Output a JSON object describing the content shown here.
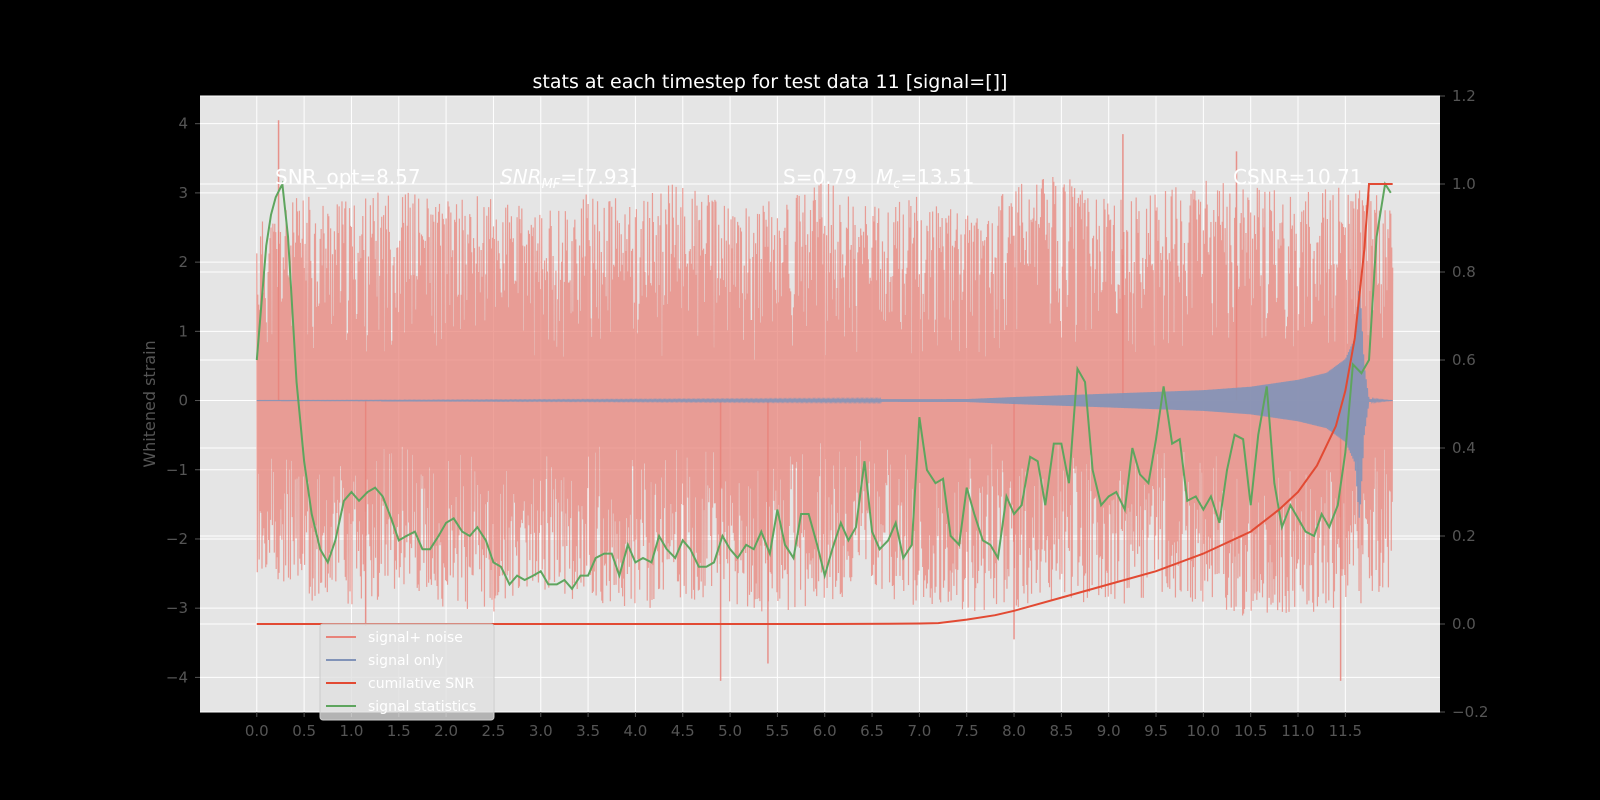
{
  "chart_data": {
    "type": "line",
    "title": "stats at each timestep for test data 11 [signal=[]]",
    "xlabel": "",
    "ylabel": "Whitened strain",
    "ylabel_right": "",
    "xlim": [
      -0.6,
      12.5
    ],
    "ylim": [
      -4.5,
      4.4
    ],
    "ylim_right": [
      -0.2,
      1.2
    ],
    "x_ticks": [
      "0.0",
      "0.5",
      "1.0",
      "1.5",
      "2.0",
      "2.5",
      "3.0",
      "3.5",
      "4.0",
      "4.5",
      "5.0",
      "5.5",
      "6.0",
      "6.5",
      "7.0",
      "7.5",
      "8.0",
      "8.5",
      "9.0",
      "9.5",
      "10.0",
      "10.5",
      "11.0",
      "11.5"
    ],
    "y_ticks_left": [
      "4",
      "3",
      "2",
      "1",
      "0",
      "−1",
      "−2",
      "−3",
      "−4"
    ],
    "y_ticks_right": [
      "1.2",
      "1.0",
      "0.8",
      "0.6",
      "0.4",
      "0.2",
      "0.0",
      "−0.2"
    ],
    "grid": true,
    "legend_position": "bottom-left",
    "annotations": {
      "snr_opt": "SNR_opt=8.57",
      "snr_mf": "SNR_MF=[7.93]",
      "s_mc_s": "S=0.79",
      "s_mc_m": "M_c=13.51",
      "csnr": "CSNR=10.71"
    },
    "series": [
      {
        "name": "signal+ noise",
        "color": "#e8837a",
        "axis": "left",
        "x_range": [
          0,
          12.0
        ],
        "envelope": {
          "x": [
            0.0,
            0.5,
            1.0,
            1.5,
            2.0,
            2.5,
            3.0,
            3.5,
            4.0,
            4.5,
            5.0,
            5.5,
            6.0,
            6.5,
            7.0,
            7.5,
            8.0,
            8.5,
            9.0,
            9.5,
            10.0,
            10.5,
            11.0,
            11.5,
            12.0
          ],
          "upper": [
            2.6,
            3.0,
            2.9,
            3.1,
            2.9,
            3.0,
            2.7,
            3.0,
            2.9,
            3.2,
            2.8,
            2.9,
            3.2,
            2.8,
            3.0,
            2.7,
            3.1,
            3.3,
            2.9,
            3.0,
            3.2,
            3.1,
            3.0,
            3.1,
            2.9
          ],
          "lower": [
            -2.6,
            -2.9,
            -3.0,
            -2.8,
            -3.0,
            -3.1,
            -2.8,
            -2.9,
            -3.1,
            -2.9,
            -3.0,
            -3.1,
            -2.9,
            -2.8,
            -3.0,
            -3.1,
            -3.0,
            -2.9,
            -3.0,
            -2.8,
            -3.0,
            -3.2,
            -3.1,
            -3.0,
            -2.8
          ]
        },
        "spikes": [
          [
            0.23,
            4.05
          ],
          [
            1.15,
            -3.25
          ],
          [
            4.9,
            -4.05
          ],
          [
            5.4,
            -3.8
          ],
          [
            8.0,
            -3.45
          ],
          [
            11.45,
            -4.05
          ],
          [
            9.15,
            3.85
          ],
          [
            10.35,
            3.6
          ]
        ]
      },
      {
        "name": "signal only",
        "color": "#8193b8",
        "axis": "left",
        "x_range": [
          0,
          12.0
        ],
        "envelope": {
          "x": [
            0.0,
            7.5,
            8.0,
            9.0,
            10.0,
            10.5,
            11.0,
            11.3,
            11.5,
            11.6,
            11.65,
            11.7,
            11.75,
            12.0
          ],
          "amplitude": [
            0.0,
            0.02,
            0.05,
            0.1,
            0.15,
            0.2,
            0.3,
            0.4,
            0.6,
            0.9,
            1.75,
            0.5,
            0.02,
            0.0
          ]
        }
      },
      {
        "name": "cumilative SNR",
        "color": "#e24a33",
        "axis": "right",
        "x": [
          0.0,
          1.0,
          3.0,
          5.0,
          6.0,
          7.0,
          7.2,
          7.5,
          7.8,
          8.0,
          8.5,
          9.0,
          9.5,
          10.0,
          10.5,
          10.8,
          11.0,
          11.2,
          11.4,
          11.5,
          11.6,
          11.7,
          11.75,
          11.8,
          12.0
        ],
        "values": [
          0.0,
          0.0,
          0.0,
          0.0,
          0.0,
          0.001,
          0.002,
          0.01,
          0.02,
          0.03,
          0.06,
          0.09,
          0.12,
          0.16,
          0.21,
          0.26,
          0.3,
          0.36,
          0.45,
          0.53,
          0.65,
          0.85,
          1.0,
          1.0,
          1.0
        ]
      },
      {
        "name": "signal statistics",
        "color": "#5ea55e",
        "axis": "right",
        "x": [
          0.0,
          0.1,
          0.15,
          0.2,
          0.27,
          0.33,
          0.42,
          0.5,
          0.58,
          0.67,
          0.75,
          0.83,
          0.92,
          1.0,
          1.08,
          1.17,
          1.25,
          1.33,
          1.42,
          1.5,
          1.58,
          1.67,
          1.75,
          1.83,
          1.92,
          2.0,
          2.08,
          2.17,
          2.25,
          2.33,
          2.42,
          2.5,
          2.58,
          2.67,
          2.75,
          2.83,
          2.92,
          3.0,
          3.08,
          3.17,
          3.25,
          3.33,
          3.42,
          3.5,
          3.58,
          3.67,
          3.75,
          3.83,
          3.92,
          4.0,
          4.08,
          4.17,
          4.25,
          4.33,
          4.42,
          4.5,
          4.58,
          4.67,
          4.75,
          4.83,
          4.92,
          5.0,
          5.08,
          5.17,
          5.25,
          5.33,
          5.42,
          5.5,
          5.58,
          5.67,
          5.75,
          5.83,
          5.92,
          6.0,
          6.08,
          6.17,
          6.25,
          6.33,
          6.42,
          6.5,
          6.58,
          6.67,
          6.75,
          6.83,
          6.92,
          7.0,
          7.08,
          7.17,
          7.25,
          7.33,
          7.42,
          7.5,
          7.58,
          7.67,
          7.75,
          7.83,
          7.92,
          8.0,
          8.08,
          8.17,
          8.25,
          8.33,
          8.42,
          8.5,
          8.58,
          8.67,
          8.75,
          8.83,
          8.92,
          9.0,
          9.08,
          9.17,
          9.25,
          9.33,
          9.42,
          9.5,
          9.58,
          9.67,
          9.75,
          9.83,
          9.92,
          10.0,
          10.08,
          10.17,
          10.25,
          10.33,
          10.42,
          10.5,
          10.58,
          10.67,
          10.75,
          10.83,
          10.92,
          11.0,
          11.08,
          11.17,
          11.25,
          11.33,
          11.42,
          11.5,
          11.58,
          11.67,
          11.75,
          11.83,
          11.92,
          11.98
        ],
        "values": [
          0.6,
          0.86,
          0.93,
          0.97,
          1.0,
          0.88,
          0.55,
          0.37,
          0.25,
          0.17,
          0.14,
          0.19,
          0.28,
          0.3,
          0.28,
          0.3,
          0.31,
          0.29,
          0.24,
          0.19,
          0.2,
          0.21,
          0.17,
          0.17,
          0.2,
          0.23,
          0.24,
          0.21,
          0.2,
          0.22,
          0.19,
          0.14,
          0.13,
          0.09,
          0.11,
          0.1,
          0.11,
          0.12,
          0.09,
          0.09,
          0.1,
          0.08,
          0.11,
          0.11,
          0.15,
          0.16,
          0.16,
          0.11,
          0.18,
          0.14,
          0.15,
          0.14,
          0.2,
          0.17,
          0.15,
          0.19,
          0.17,
          0.13,
          0.13,
          0.14,
          0.2,
          0.17,
          0.15,
          0.18,
          0.17,
          0.21,
          0.16,
          0.26,
          0.18,
          0.15,
          0.25,
          0.25,
          0.18,
          0.11,
          0.17,
          0.23,
          0.19,
          0.22,
          0.37,
          0.21,
          0.17,
          0.19,
          0.23,
          0.15,
          0.18,
          0.47,
          0.35,
          0.32,
          0.33,
          0.2,
          0.18,
          0.31,
          0.25,
          0.19,
          0.18,
          0.15,
          0.29,
          0.25,
          0.27,
          0.38,
          0.37,
          0.27,
          0.41,
          0.41,
          0.32,
          0.58,
          0.55,
          0.35,
          0.27,
          0.29,
          0.3,
          0.26,
          0.4,
          0.34,
          0.32,
          0.42,
          0.54,
          0.41,
          0.42,
          0.28,
          0.29,
          0.26,
          0.29,
          0.23,
          0.35,
          0.43,
          0.42,
          0.27,
          0.43,
          0.54,
          0.32,
          0.22,
          0.27,
          0.24,
          0.21,
          0.2,
          0.25,
          0.22,
          0.27,
          0.39,
          0.59,
          0.57,
          0.6,
          0.88,
          1.0,
          0.98
        ]
      }
    ]
  }
}
